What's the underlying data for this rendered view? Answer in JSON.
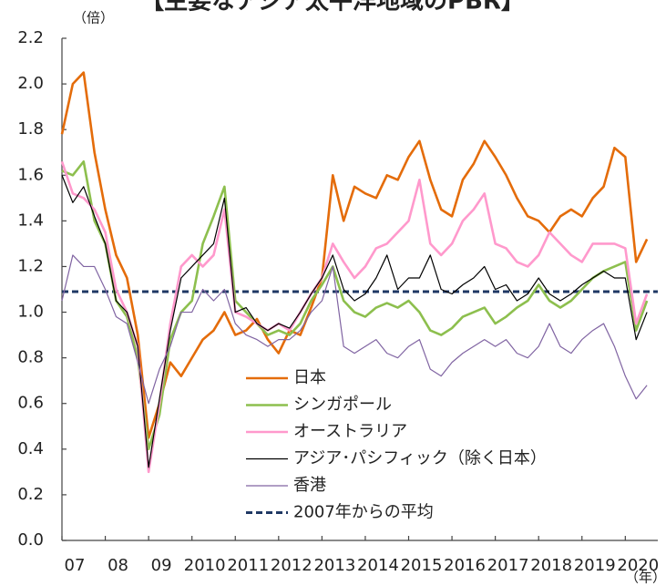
{
  "chart_data": {
    "type": "line",
    "title": "【主要なアジア太平洋地域のPBR】",
    "y_unit_label": "（倍）",
    "x_unit_label": "（年）",
    "x": [
      2007,
      2007.25,
      2007.5,
      2007.75,
      2008,
      2008.25,
      2008.5,
      2008.75,
      2009,
      2009.25,
      2009.5,
      2009.75,
      2010,
      2010.25,
      2010.5,
      2010.75,
      2011,
      2011.25,
      2011.5,
      2011.75,
      2012,
      2012.25,
      2012.5,
      2012.75,
      2013,
      2013.25,
      2013.5,
      2013.75,
      2014,
      2014.25,
      2014.5,
      2014.75,
      2015,
      2015.25,
      2015.5,
      2015.75,
      2016,
      2016.25,
      2016.5,
      2016.75,
      2017,
      2017.25,
      2017.5,
      2017.75,
      2018,
      2018.25,
      2018.5,
      2018.75,
      2019,
      2019.25,
      2019.5,
      2019.75,
      2020,
      2020.25,
      2020.5
    ],
    "series": [
      {
        "name": "日本",
        "color": "#e46c0a",
        "width": 2.6,
        "values": [
          1.78,
          2.0,
          2.05,
          1.7,
          1.45,
          1.25,
          1.15,
          0.9,
          0.45,
          0.6,
          0.78,
          0.72,
          0.8,
          0.88,
          0.92,
          1.0,
          0.9,
          0.92,
          0.97,
          0.88,
          0.82,
          0.92,
          0.9,
          1.02,
          1.15,
          1.6,
          1.4,
          1.55,
          1.52,
          1.5,
          1.6,
          1.58,
          1.68,
          1.75,
          1.58,
          1.45,
          1.42,
          1.58,
          1.65,
          1.75,
          1.68,
          1.6,
          1.5,
          1.42,
          1.4,
          1.35,
          1.42,
          1.45,
          1.42,
          1.5,
          1.55,
          1.72,
          1.68,
          1.22,
          1.32
        ]
      },
      {
        "name": "シンガポール",
        "color": "#8dbf4e",
        "width": 2.6,
        "values": [
          1.62,
          1.6,
          1.66,
          1.4,
          1.3,
          1.05,
          0.98,
          0.8,
          0.4,
          0.55,
          0.88,
          1.0,
          1.05,
          1.3,
          1.42,
          1.55,
          1.05,
          1.0,
          0.95,
          0.9,
          0.92,
          0.9,
          0.95,
          1.05,
          1.12,
          1.2,
          1.05,
          1.0,
          0.98,
          1.02,
          1.04,
          1.02,
          1.05,
          1.0,
          0.92,
          0.9,
          0.93,
          0.98,
          1.0,
          1.02,
          0.95,
          0.98,
          1.02,
          1.05,
          1.12,
          1.05,
          1.02,
          1.05,
          1.1,
          1.15,
          1.18,
          1.2,
          1.22,
          0.92,
          1.05
        ]
      },
      {
        "name": "オーストラリア",
        "color": "#ff99cc",
        "width": 2.6,
        "values": [
          1.66,
          1.52,
          1.5,
          1.45,
          1.35,
          1.1,
          1.0,
          0.85,
          0.3,
          0.6,
          0.95,
          1.2,
          1.25,
          1.2,
          1.25,
          1.45,
          1.0,
          0.98,
          0.95,
          0.92,
          0.95,
          0.92,
          1.0,
          1.08,
          1.15,
          1.3,
          1.22,
          1.15,
          1.2,
          1.28,
          1.3,
          1.35,
          1.4,
          1.58,
          1.3,
          1.25,
          1.3,
          1.4,
          1.45,
          1.52,
          1.3,
          1.28,
          1.22,
          1.2,
          1.25,
          1.35,
          1.3,
          1.25,
          1.22,
          1.3,
          1.3,
          1.3,
          1.28,
          0.95,
          1.08
        ]
      },
      {
        "name": "アジア･パシフィック（除く日本）",
        "color": "#000000",
        "width": 1.2,
        "values": [
          1.6,
          1.48,
          1.55,
          1.42,
          1.3,
          1.05,
          1.0,
          0.85,
          0.32,
          0.62,
          0.92,
          1.15,
          1.2,
          1.25,
          1.3,
          1.5,
          1.0,
          1.02,
          0.95,
          0.92,
          0.95,
          0.93,
          1.0,
          1.08,
          1.15,
          1.25,
          1.1,
          1.05,
          1.08,
          1.15,
          1.25,
          1.1,
          1.15,
          1.15,
          1.25,
          1.1,
          1.08,
          1.12,
          1.15,
          1.2,
          1.1,
          1.12,
          1.05,
          1.08,
          1.15,
          1.08,
          1.05,
          1.08,
          1.12,
          1.15,
          1.18,
          1.15,
          1.15,
          0.88,
          1.0
        ]
      },
      {
        "name": "香港",
        "color": "#8064a2",
        "width": 1.2,
        "values": [
          1.05,
          1.25,
          1.2,
          1.2,
          1.1,
          0.98,
          0.95,
          0.78,
          0.6,
          0.75,
          0.85,
          1.0,
          1.0,
          1.1,
          1.05,
          1.1,
          0.95,
          0.9,
          0.88,
          0.85,
          0.88,
          0.88,
          0.92,
          1.0,
          1.05,
          1.2,
          0.85,
          0.82,
          0.85,
          0.88,
          0.82,
          0.8,
          0.85,
          0.88,
          0.75,
          0.72,
          0.78,
          0.82,
          0.85,
          0.88,
          0.85,
          0.88,
          0.82,
          0.8,
          0.85,
          0.95,
          0.85,
          0.82,
          0.88,
          0.92,
          0.95,
          0.85,
          0.72,
          0.62,
          0.68
        ]
      }
    ],
    "reference_line": {
      "name": "2007年からの平均",
      "value": 1.09,
      "color": "#1f3864",
      "dashed": true
    },
    "xlim": [
      2007,
      2020.75
    ],
    "xticks": [
      {
        "value": 2007,
        "label": "07"
      },
      {
        "value": 2008,
        "label": "08"
      },
      {
        "value": 2009,
        "label": "09"
      },
      2010,
      2011,
      2012,
      2013,
      2014,
      2015,
      2016,
      2017,
      2018,
      2019,
      2020
    ],
    "ylim": [
      0,
      2.2
    ],
    "yticks": [
      {
        "value": 0,
        "label": "0.0"
      },
      0.2,
      0.4,
      0.6,
      0.8,
      {
        "value": 1,
        "label": "1.0"
      },
      1.2,
      1.4,
      1.6,
      1.8,
      {
        "value": 2,
        "label": "2.0"
      },
      2.2
    ],
    "grid": false
  }
}
